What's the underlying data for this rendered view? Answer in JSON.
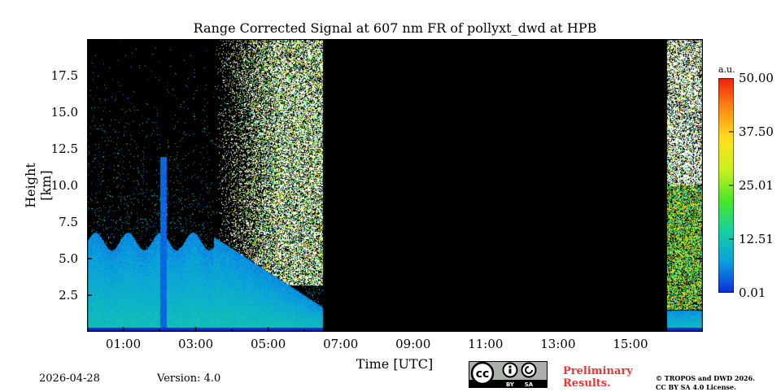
{
  "chart_data": {
    "type": "heatmap",
    "title": "Range Corrected Signal at 607 nm FR of pollyxt_dwd at HPB",
    "xlabel": "Time [UTC]",
    "ylabel": "Height [km]",
    "x_ticks": [
      "01:00",
      "03:00",
      "05:00",
      "07:00",
      "09:00",
      "11:00",
      "13:00",
      "15:00"
    ],
    "x_tick_hours": [
      1,
      3,
      5,
      7,
      9,
      11,
      13,
      15
    ],
    "xlim_hours": [
      0.0,
      17.0
    ],
    "y_ticks": [
      "2.5",
      "5.0",
      "7.5",
      "10.0",
      "12.5",
      "15.0",
      "17.5"
    ],
    "y_tick_values": [
      2.5,
      5.0,
      7.5,
      10.0,
      12.5,
      15.0,
      17.5
    ],
    "ylim": [
      0.0,
      20.0
    ],
    "no_data_interval_hours": [
      6.5,
      16.0
    ],
    "colorbar": {
      "unit": "a.u.",
      "ticks": [
        "0.01",
        "12.51",
        "25.01",
        "37.50",
        "50.00"
      ],
      "tick_values": [
        0.01,
        12.51,
        25.01,
        37.5,
        50.0
      ],
      "range": [
        0.01,
        50.0
      ],
      "colormap": [
        "#0b2bd9",
        "#0a9fe0",
        "#14d1a0",
        "#49e62a",
        "#c8f01e",
        "#ffe11e",
        "#ff8c14",
        "#f01e0a"
      ]
    }
  },
  "footer": {
    "date": "2026-04-28",
    "version": "Version: 4.0",
    "cc_text": "cc",
    "cc_by": "BY",
    "cc_sa": "SA",
    "preliminary_line1": "Preliminary",
    "preliminary_line2": "Results.",
    "copyright_line1": "© TROPOS and DWD 2026.",
    "copyright_line2": "CC BY SA 4.0 License."
  }
}
